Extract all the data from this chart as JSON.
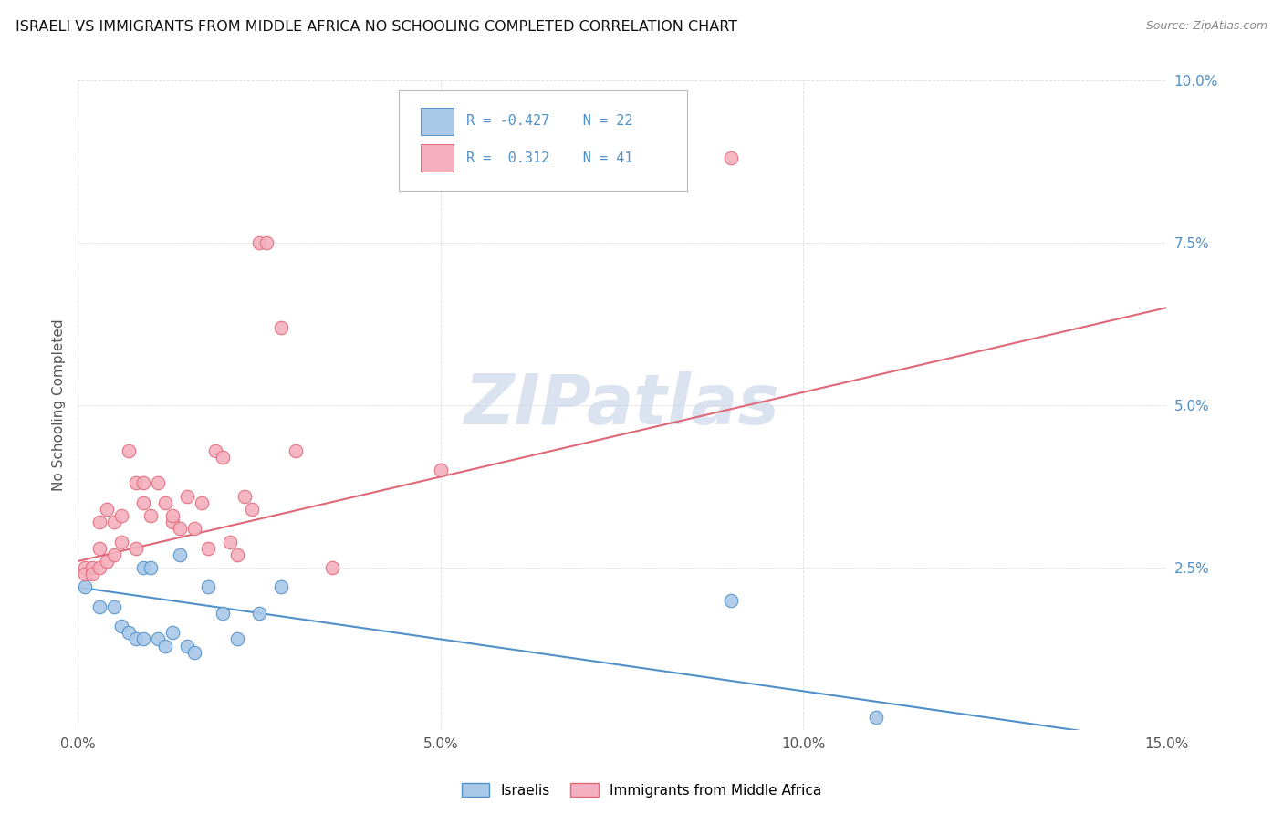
{
  "title": "ISRAELI VS IMMIGRANTS FROM MIDDLE AFRICA NO SCHOOLING COMPLETED CORRELATION CHART",
  "source": "Source: ZipAtlas.com",
  "ylabel": "No Schooling Completed",
  "xmin": 0.0,
  "xmax": 0.15,
  "ymin": 0.0,
  "ymax": 0.1,
  "color_blue": "#aac8e8",
  "color_pink": "#f5b0bf",
  "line_color_blue": "#5090c8",
  "line_color_pink": "#e06878",
  "watermark_color": "#ccd8ea",
  "r1": "-0.427",
  "n1": "22",
  "r2": "0.312",
  "n2": "41",
  "legend_label1": "Israelis",
  "legend_label2": "Immigrants from Middle Africa",
  "israelis_x": [
    0.001,
    0.003,
    0.005,
    0.006,
    0.007,
    0.008,
    0.009,
    0.009,
    0.01,
    0.011,
    0.012,
    0.013,
    0.014,
    0.015,
    0.016,
    0.018,
    0.02,
    0.022,
    0.025,
    0.028,
    0.09,
    0.11
  ],
  "israelis_y": [
    0.022,
    0.019,
    0.019,
    0.016,
    0.015,
    0.014,
    0.025,
    0.014,
    0.025,
    0.014,
    0.013,
    0.015,
    0.027,
    0.013,
    0.012,
    0.022,
    0.018,
    0.014,
    0.018,
    0.022,
    0.02,
    0.002
  ],
  "africa_x": [
    0.001,
    0.001,
    0.002,
    0.002,
    0.003,
    0.003,
    0.003,
    0.004,
    0.004,
    0.005,
    0.005,
    0.006,
    0.006,
    0.007,
    0.008,
    0.008,
    0.009,
    0.009,
    0.01,
    0.011,
    0.012,
    0.013,
    0.013,
    0.014,
    0.015,
    0.016,
    0.017,
    0.018,
    0.019,
    0.02,
    0.021,
    0.022,
    0.023,
    0.024,
    0.025,
    0.026,
    0.028,
    0.03,
    0.035,
    0.05,
    0.09
  ],
  "africa_y": [
    0.025,
    0.024,
    0.025,
    0.024,
    0.032,
    0.028,
    0.025,
    0.034,
    0.026,
    0.032,
    0.027,
    0.033,
    0.029,
    0.043,
    0.038,
    0.028,
    0.038,
    0.035,
    0.033,
    0.038,
    0.035,
    0.032,
    0.033,
    0.031,
    0.036,
    0.031,
    0.035,
    0.028,
    0.043,
    0.042,
    0.029,
    0.027,
    0.036,
    0.034,
    0.075,
    0.075,
    0.062,
    0.043,
    0.025,
    0.04,
    0.088
  ],
  "blue_line_x0": 0.0,
  "blue_line_y0": 0.022,
  "blue_line_x1": 0.15,
  "blue_line_y1": -0.002,
  "pink_line_x0": 0.0,
  "pink_line_y0": 0.026,
  "pink_line_x1": 0.15,
  "pink_line_y1": 0.065
}
